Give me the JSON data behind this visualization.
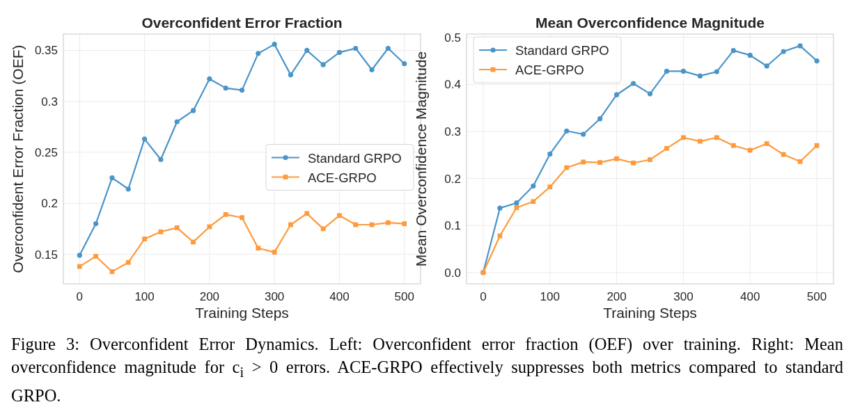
{
  "chart_data": [
    {
      "type": "line",
      "title": "Overconfident Error Fraction",
      "xlabel": "Training Steps",
      "ylabel": "Overconfident Error Fraction (OEF)",
      "x": [
        0,
        25,
        50,
        75,
        100,
        125,
        150,
        175,
        200,
        225,
        250,
        275,
        300,
        325,
        350,
        375,
        400,
        425,
        450,
        475,
        500
      ],
      "xlim": [
        -25,
        525
      ],
      "xticks": [
        0,
        100,
        200,
        300,
        400,
        500
      ],
      "ylim": [
        0.121,
        0.366
      ],
      "yticks": [
        0.15,
        0.2,
        0.25,
        0.3,
        0.35
      ],
      "grid": true,
      "legend": "right",
      "series": [
        {
          "name": "Standard GRPO",
          "color": "#4a94c8",
          "marker": "circle",
          "values": [
            0.149,
            0.18,
            0.225,
            0.214,
            0.263,
            0.243,
            0.28,
            0.291,
            0.322,
            0.313,
            0.311,
            0.347,
            0.356,
            0.326,
            0.35,
            0.336,
            0.348,
            0.352,
            0.331,
            0.352,
            0.337
          ]
        },
        {
          "name": "ACE-GRPO",
          "color": "#fd9a3c",
          "marker": "square",
          "values": [
            0.138,
            0.148,
            0.133,
            0.142,
            0.165,
            0.172,
            0.176,
            0.162,
            0.177,
            0.189,
            0.186,
            0.156,
            0.152,
            0.179,
            0.19,
            0.175,
            0.188,
            0.179,
            0.179,
            0.181,
            0.18
          ]
        }
      ],
      "annotations": [
        "Figure 3: Overconfident Error Dynamics. Left: Overconfident error fraction (OEF) over training. Right: Mean overconfidence magnitude for c$_{i}$ > 0 errors. ACE-GRPO effectively suppresses both metrics compared to standard GRPO."
      ]
    },
    {
      "type": "line",
      "title": "Mean Overconfidence Magnitude",
      "xlabel": "Training Steps",
      "ylabel": "Mean Overconfidence Magnitude",
      "x": [
        0,
        25,
        50,
        75,
        100,
        125,
        150,
        175,
        200,
        225,
        250,
        275,
        300,
        325,
        350,
        375,
        400,
        425,
        450,
        475,
        500
      ],
      "xlim": [
        -25,
        525
      ],
      "xticks": [
        0,
        100,
        200,
        300,
        400,
        500
      ],
      "ylim": [
        -0.024,
        0.507
      ],
      "yticks": [
        {
          "value": 0,
          "label": "0.0"
        },
        0.1,
        0.2,
        0.3,
        0.4,
        0.5
      ],
      "grid": true,
      "legend": "top left",
      "series": [
        {
          "name": "Standard GRPO",
          "color": "#4a94c8",
          "marker": "circle",
          "values": [
            0,
            0.137,
            0.148,
            0.184,
            0.252,
            0.301,
            0.294,
            0.327,
            0.378,
            0.402,
            0.38,
            0.428,
            0.428,
            0.418,
            0.427,
            0.472,
            0.462,
            0.439,
            0.47,
            0.482,
            0.45
          ]
        },
        {
          "name": "ACE-GRPO",
          "color": "#fd9a3c",
          "marker": "square",
          "values": [
            0,
            0.078,
            0.138,
            0.151,
            0.182,
            0.223,
            0.235,
            0.234,
            0.242,
            0.233,
            0.24,
            0.264,
            0.287,
            0.279,
            0.287,
            0.27,
            0.26,
            0.274,
            0.251,
            0.236,
            0.27
          ]
        }
      ]
    }
  ]
}
